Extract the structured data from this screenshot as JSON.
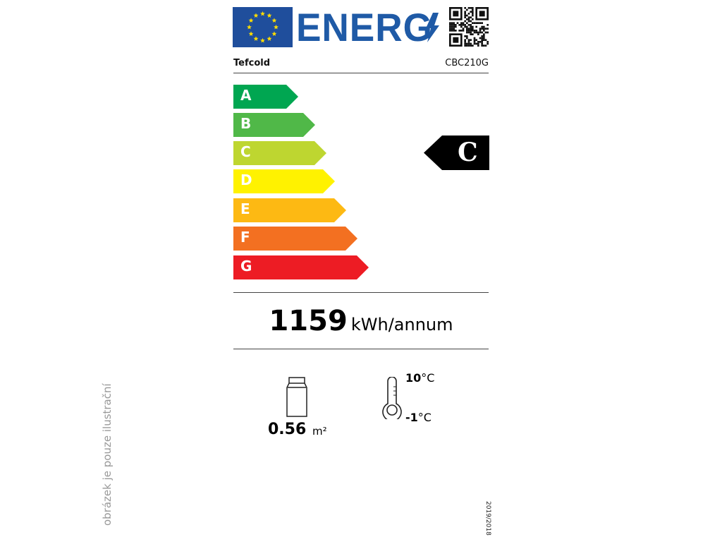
{
  "header": {
    "logo_text": "ENERG",
    "brand": "Tefcold",
    "model": "CBC210G"
  },
  "scale": [
    {
      "label": "A",
      "color": "#00a651"
    },
    {
      "label": "B",
      "color": "#50b848"
    },
    {
      "label": "C",
      "color": "#bed630"
    },
    {
      "label": "D",
      "color": "#fff200"
    },
    {
      "label": "E",
      "color": "#fdb913"
    },
    {
      "label": "F",
      "color": "#f37021"
    },
    {
      "label": "G",
      "color": "#ed1c24"
    }
  ],
  "rating": {
    "class": "C"
  },
  "consumption": {
    "value": "1159",
    "unit": "kWh/annum"
  },
  "specs": {
    "display_area": "0.56",
    "display_area_unit": "m²",
    "temp_max": "10",
    "temp_min": "-1",
    "temp_unit": "°C"
  },
  "regulation": "2019/2018",
  "watermark": "obrázek je pouze ilustrační"
}
